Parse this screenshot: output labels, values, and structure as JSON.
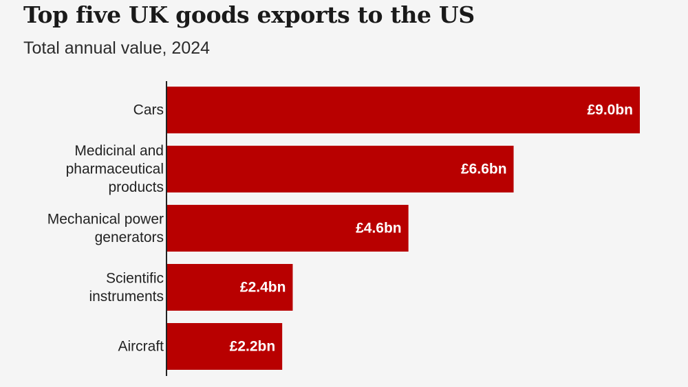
{
  "title": "Top five UK goods exports to the US",
  "subtitle": "Total annual value, 2024",
  "colors": {
    "bar": "#b80000",
    "axis": "#222222",
    "background": "#f5f5f5"
  },
  "chart_data": {
    "type": "bar",
    "orientation": "horizontal",
    "title": "Top five UK goods exports to the US",
    "subtitle": "Total annual value, 2024",
    "categories": [
      "Cars",
      "Medicinal and pharmaceutical products",
      "Mechanical power generators",
      "Scientific instruments",
      "Aircraft"
    ],
    "category_lines": [
      [
        "Cars"
      ],
      [
        "Medicinal and",
        "pharmaceutical",
        "products"
      ],
      [
        "Mechanical power",
        "generators"
      ],
      [
        "Scientific",
        "instruments"
      ],
      [
        "Aircraft"
      ]
    ],
    "values": [
      9.0,
      6.6,
      4.6,
      2.4,
      2.2
    ],
    "value_labels": [
      "£9.0bn",
      "£6.6bn",
      "£4.6bn",
      "£2.4bn",
      "£2.2bn"
    ],
    "unit": "£bn",
    "xlim": [
      0,
      9.0
    ],
    "grid": false,
    "legend": "none"
  }
}
